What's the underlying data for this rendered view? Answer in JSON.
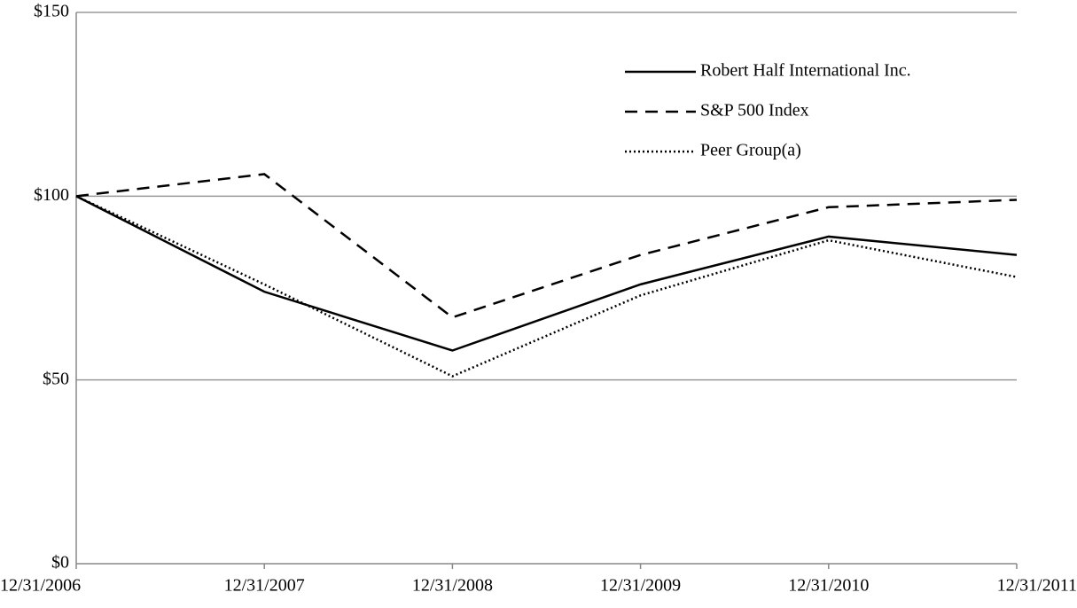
{
  "chart_data": {
    "type": "line",
    "categories": [
      "12/31/2006",
      "12/31/2007",
      "12/31/2008",
      "12/31/2009",
      "12/31/2010",
      "12/31/2011"
    ],
    "series": [
      {
        "name": "Robert Half International Inc.",
        "color": "#000000",
        "dash": "solid",
        "values": [
          100,
          74,
          58,
          76,
          89,
          84
        ]
      },
      {
        "name": "S&P 500 Index",
        "color": "#000000",
        "dash": "dashed",
        "values": [
          100,
          106,
          67,
          84,
          97,
          99
        ]
      },
      {
        "name": "Peer Group(a)",
        "color": "#000000",
        "dash": "dotted",
        "values": [
          100,
          76,
          51,
          73,
          88,
          78
        ]
      }
    ],
    "ylim": [
      0,
      150
    ],
    "yticks": [
      {
        "value": 0,
        "label": "$0"
      },
      {
        "value": 50,
        "label": "$50"
      },
      {
        "value": 100,
        "label": "$100"
      },
      {
        "value": 150,
        "label": "$150"
      }
    ],
    "grid": true,
    "legend": "upper right"
  }
}
